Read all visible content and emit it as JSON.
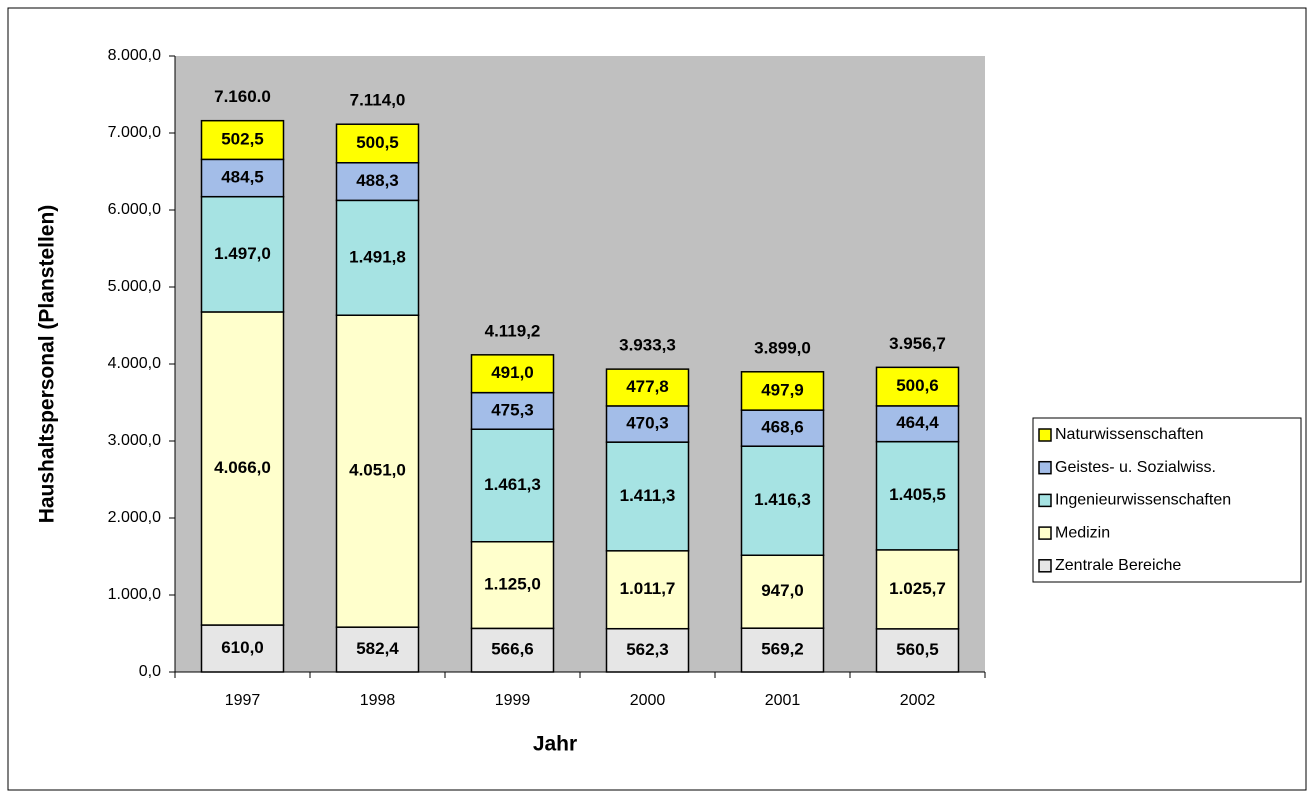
{
  "chart_data": {
    "type": "bar",
    "stacked": true,
    "xlabel": "Jahr",
    "ylabel": "Haushaltspersonal (Planstellen)",
    "categories": [
      "1997",
      "1998",
      "1999",
      "2000",
      "2001",
      "2002"
    ],
    "series": [
      {
        "name": "Zentrale Bereiche",
        "color": "#e6e6e6",
        "values": [
          610.0,
          582.4,
          566.6,
          562.3,
          569.2,
          560.5
        ],
        "value_labels": [
          "610,0",
          "582,4",
          "566,6",
          "562,3",
          "569,2",
          "560,5"
        ]
      },
      {
        "name": "Medizin",
        "color": "#ffffcc",
        "values": [
          4066.0,
          4051.0,
          1125.0,
          1011.7,
          947.0,
          1025.7
        ],
        "value_labels": [
          "4.066,0",
          "4.051,0",
          "1.125,0",
          "1.011,7",
          "947,0",
          "1.025,7"
        ]
      },
      {
        "name": "Ingenieurwissenschaften",
        "color": "#a6e3e3",
        "values": [
          1497.0,
          1491.8,
          1461.3,
          1411.3,
          1416.3,
          1405.5
        ],
        "value_labels": [
          "1.497,0",
          "1.491,8",
          "1.461,3",
          "1.411,3",
          "1.416,3",
          "1.405,5"
        ]
      },
      {
        "name": "Geistes- u. Sozialwiss.",
        "color": "#a3bde8",
        "values": [
          484.5,
          488.3,
          475.3,
          470.3,
          468.6,
          464.4
        ],
        "value_labels": [
          "484,5",
          "488,3",
          "475,3",
          "470,3",
          "468,6",
          "464,4"
        ]
      },
      {
        "name": "Naturwissenschaften",
        "color": "#ffff00",
        "values": [
          502.5,
          500.5,
          491.0,
          477.8,
          497.9,
          500.6
        ],
        "value_labels": [
          "502,5",
          "500,5",
          "491,0",
          "477,8",
          "497,9",
          "500,6"
        ]
      }
    ],
    "totals": [
      7160.0,
      7114.0,
      4119.2,
      3933.3,
      3899.0,
      3956.7
    ],
    "total_labels": [
      "7.160.0",
      "7.114,0",
      "4.119,2",
      "3.933,3",
      "3.899,0",
      "3.956,7"
    ],
    "ylim": [
      0,
      8000
    ],
    "yticks": [
      {
        "value": 0,
        "label": "0,0"
      },
      {
        "value": 1000,
        "label": "1.000,0"
      },
      {
        "value": 2000,
        "label": "2.000,0"
      },
      {
        "value": 3000,
        "label": "3.000,0"
      },
      {
        "value": 4000,
        "label": "4.000,0"
      },
      {
        "value": 5000,
        "label": "5.000,0"
      },
      {
        "value": 6000,
        "label": "6.000,0"
      },
      {
        "value": 7000,
        "label": "7.000,0"
      },
      {
        "value": 8000,
        "label": "8.000,0"
      }
    ],
    "plot_background": "#c0c0c0",
    "legend": "right"
  }
}
